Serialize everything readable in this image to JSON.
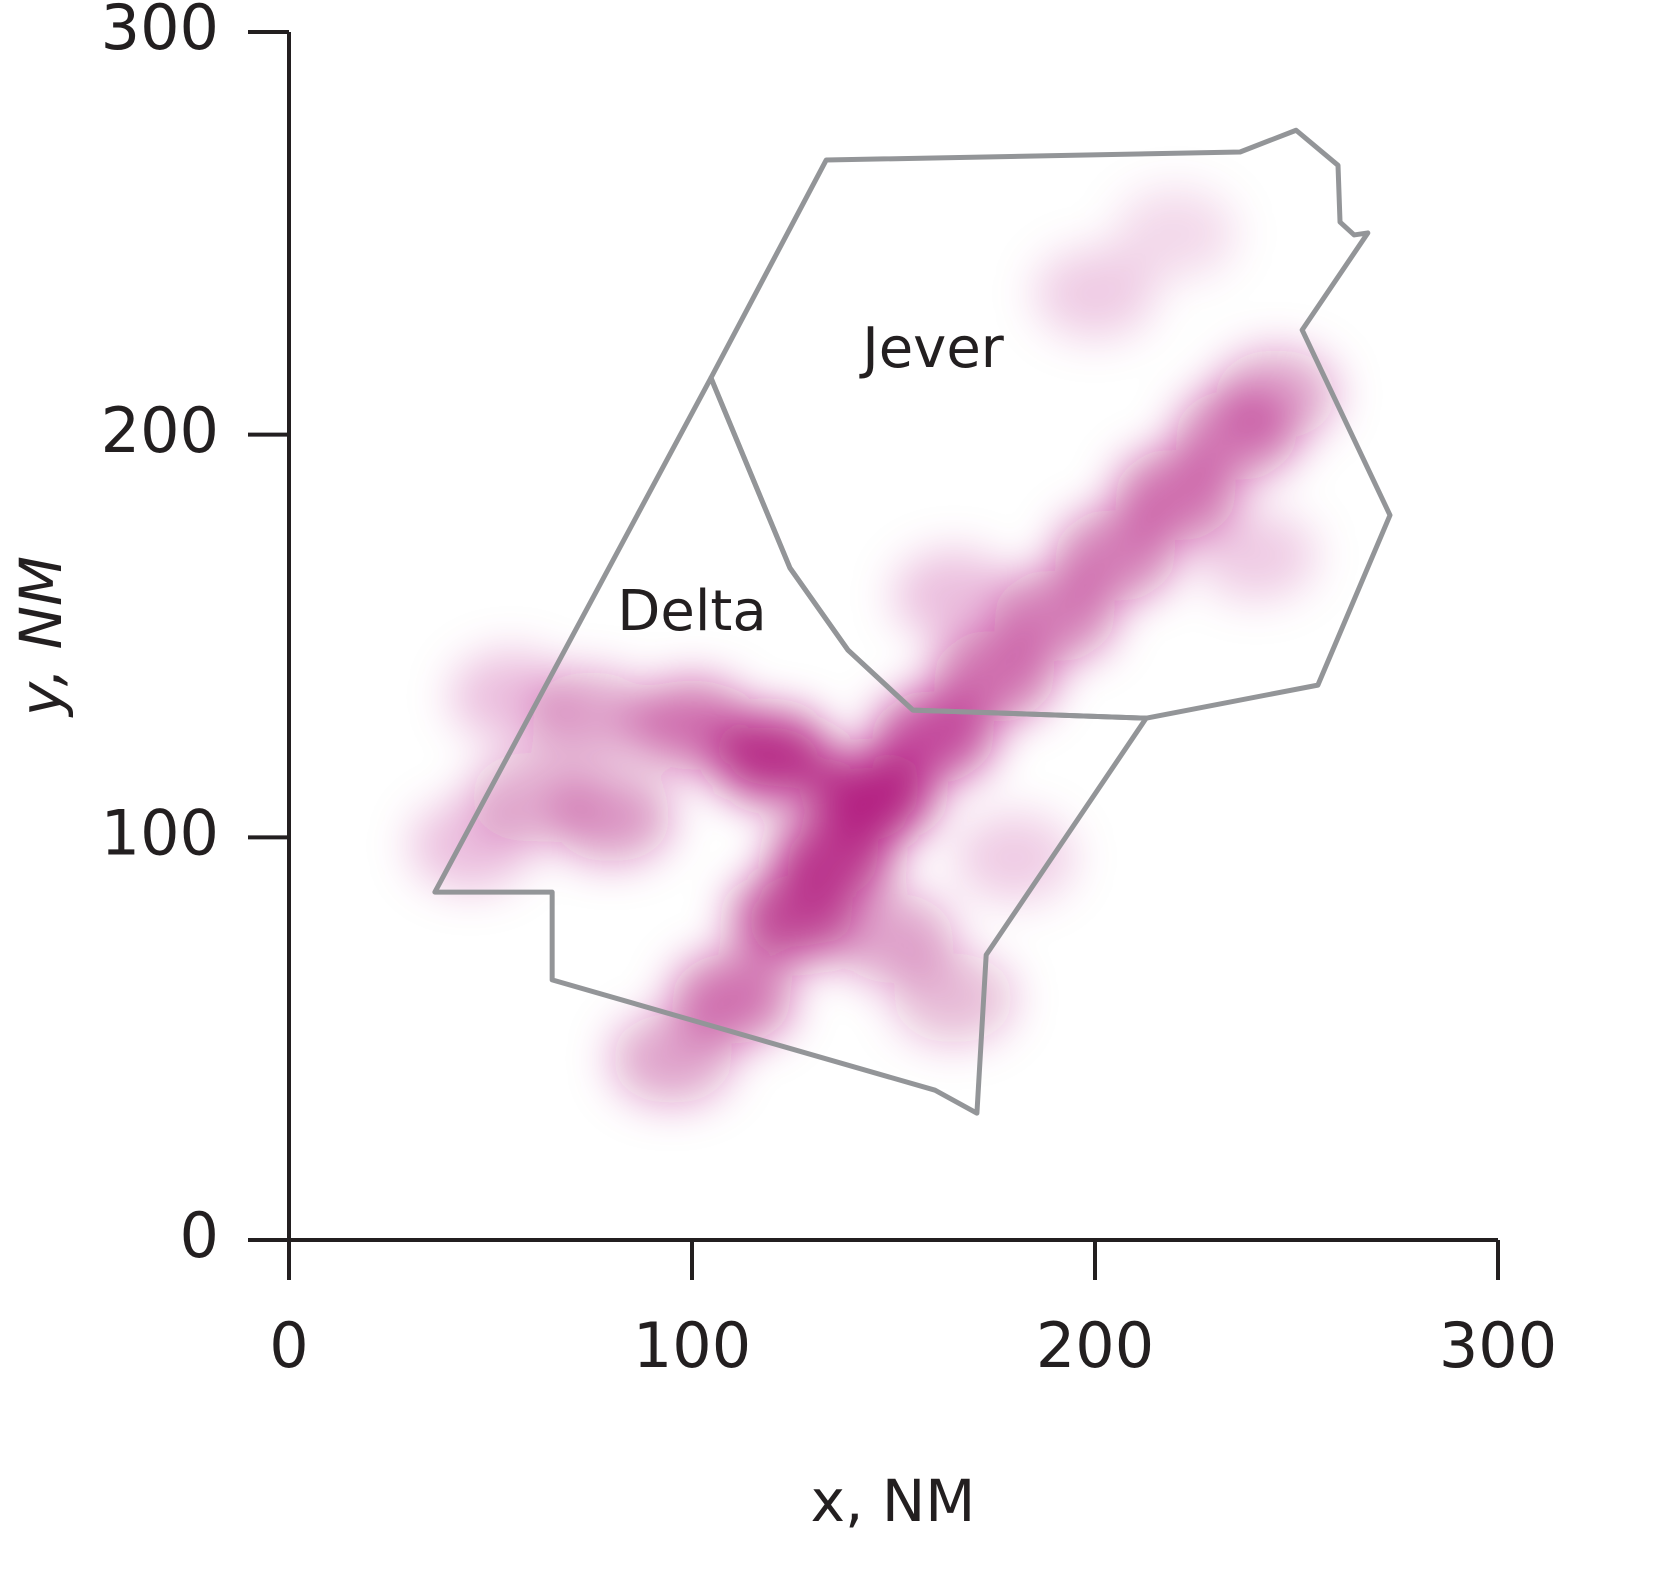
{
  "chart_data": {
    "type": "density",
    "xlabel": "x, NM",
    "ylabel": "y, NM",
    "xlim": [
      0,
      300
    ],
    "ylim": [
      0,
      300
    ],
    "xticks": [
      0,
      100,
      200,
      300
    ],
    "yticks": [
      0,
      100,
      200,
      300
    ],
    "series": [
      {
        "name": "Delta",
        "color": "#939598",
        "x": [
          104.7,
          36.2,
          65.3,
          65.3,
          160.3,
          170.7,
          173.0,
          212.7,
          154.8,
          138.7,
          124.3
        ],
        "y": [
          214.1,
          86.4,
          86.4,
          64.6,
          37.2,
          31.5,
          70.8,
          129.6,
          131.6,
          146.5,
          166.9
        ]
      },
      {
        "name": "Jever",
        "color": "#939598",
        "x": [
          104.7,
          133.3,
          236.0,
          249.9,
          260.3,
          260.8,
          264.3,
          267.7,
          251.4,
          273.2,
          255.3,
          212.7,
          154.8,
          138.7,
          124.3
        ],
        "y": [
          214.1,
          268.2,
          270.2,
          275.6,
          266.9,
          252.8,
          249.6,
          250.1,
          226.0,
          180.0,
          137.8,
          129.6,
          131.6,
          146.5,
          166.9
        ]
      }
    ],
    "density": {
      "color": "#b0157c",
      "x": [
        95,
        110,
        125,
        135,
        145,
        120,
        100,
        75,
        55,
        60,
        80,
        45,
        160,
        175,
        190,
        205,
        220,
        235,
        245,
        200,
        220,
        165,
        150,
        165,
        240,
        180
      ],
      "y": [
        45,
        60,
        80,
        95,
        110,
        120,
        128,
        130,
        135,
        110,
        105,
        98,
        125,
        140,
        155,
        170,
        185,
        200,
        210,
        235,
        250,
        160,
        75,
        60,
        170,
        95
      ],
      "values": [
        0.4,
        0.6,
        0.8,
        0.85,
        0.95,
        0.9,
        0.6,
        0.4,
        0.25,
        0.35,
        0.45,
        0.25,
        0.75,
        0.6,
        0.55,
        0.55,
        0.6,
        0.55,
        0.4,
        0.2,
        0.15,
        0.25,
        0.4,
        0.3,
        0.2,
        0.2
      ]
    }
  }
}
